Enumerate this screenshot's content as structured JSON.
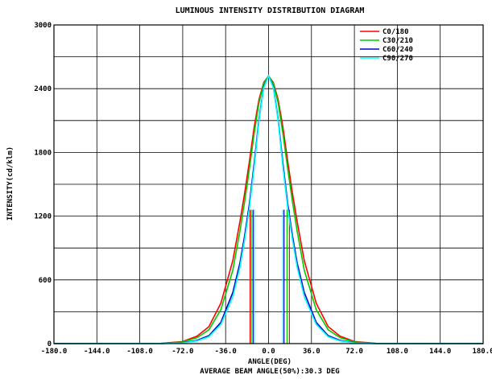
{
  "chart_data": {
    "type": "line",
    "title": "LUMINOUS INTENSITY DISTRIBUTION DIAGRAM",
    "xlabel": "ANGLE(DEG)",
    "ylabel": "INTENSITY(cd/klm)",
    "subtitle": "AVERAGE BEAM ANGLE(50%):30.3 DEG",
    "xlim": [
      -180,
      180
    ],
    "ylim": [
      0,
      3000
    ],
    "x_ticks": [
      -180,
      -144,
      -108,
      -72,
      -36,
      0,
      36,
      72,
      108,
      144,
      180
    ],
    "x_tick_labels": [
      "-180.0",
      "-144.0",
      "-108.0",
      "-72.0",
      "-36.0",
      "0.0",
      "36.0",
      "72.0",
      "108.0",
      "144.0",
      "180.0"
    ],
    "y_ticks": [
      0,
      600,
      1200,
      1800,
      2400,
      3000
    ],
    "y_tick_labels": [
      "0",
      "600",
      "1200",
      "1800",
      "2400",
      "3000"
    ],
    "grid": true,
    "legend_position": "top-right",
    "series": [
      {
        "name": "C0/180",
        "color": "#ff0000",
        "x": [
          -180,
          -90,
          -72,
          -60,
          -50,
          -40,
          -30,
          -24,
          -20,
          -16,
          -12,
          -8,
          -4,
          0,
          4,
          8,
          12,
          16,
          20,
          24,
          30,
          40,
          50,
          60,
          72,
          90,
          180
        ],
        "y": [
          0,
          2,
          20,
          70,
          160,
          380,
          780,
          1150,
          1420,
          1720,
          2040,
          2300,
          2460,
          2520,
          2460,
          2300,
          2040,
          1720,
          1420,
          1150,
          780,
          380,
          160,
          70,
          20,
          2,
          0
        ],
        "beam_edges": [
          -15.5,
          17.5
        ]
      },
      {
        "name": "C30/210",
        "color": "#00cc00",
        "x": [
          -180,
          -90,
          -72,
          -60,
          -50,
          -40,
          -30,
          -24,
          -20,
          -16,
          -12,
          -8,
          -4,
          0,
          4,
          8,
          12,
          16,
          20,
          24,
          30,
          40,
          50,
          60,
          72,
          90,
          180
        ],
        "y": [
          0,
          2,
          15,
          55,
          130,
          320,
          690,
          1060,
          1340,
          1650,
          1980,
          2270,
          2450,
          2520,
          2450,
          2270,
          1980,
          1650,
          1340,
          1060,
          690,
          320,
          130,
          55,
          15,
          2,
          0
        ],
        "beam_edges": [
          -14.5,
          15.5
        ]
      },
      {
        "name": "C60/240",
        "color": "#0000cc",
        "x": [
          -180,
          -90,
          -72,
          -60,
          -50,
          -40,
          -30,
          -24,
          -20,
          -16,
          -12,
          -8,
          -4,
          0,
          4,
          8,
          12,
          16,
          20,
          24,
          30,
          40,
          50,
          60,
          72,
          90,
          180
        ],
        "y": [
          0,
          1,
          8,
          30,
          75,
          200,
          480,
          760,
          1020,
          1320,
          1700,
          2120,
          2420,
          2520,
          2420,
          2120,
          1700,
          1320,
          1020,
          760,
          480,
          200,
          75,
          30,
          8,
          1,
          0
        ],
        "beam_edges": [
          -13,
          13
        ]
      },
      {
        "name": "C90/270",
        "color": "#00ffff",
        "x": [
          -180,
          -90,
          -72,
          -60,
          -50,
          -40,
          -30,
          -24,
          -20,
          -16,
          -12,
          -8,
          -4,
          0,
          4,
          8,
          12,
          16,
          20,
          24,
          30,
          40,
          50,
          60,
          72,
          90,
          180
        ],
        "y": [
          0,
          1,
          6,
          25,
          65,
          180,
          440,
          720,
          980,
          1280,
          1660,
          2100,
          2410,
          2520,
          2410,
          2100,
          1660,
          1280,
          980,
          720,
          440,
          180,
          65,
          25,
          6,
          1,
          0
        ],
        "beam_edges": [
          -12,
          12
        ]
      }
    ]
  }
}
